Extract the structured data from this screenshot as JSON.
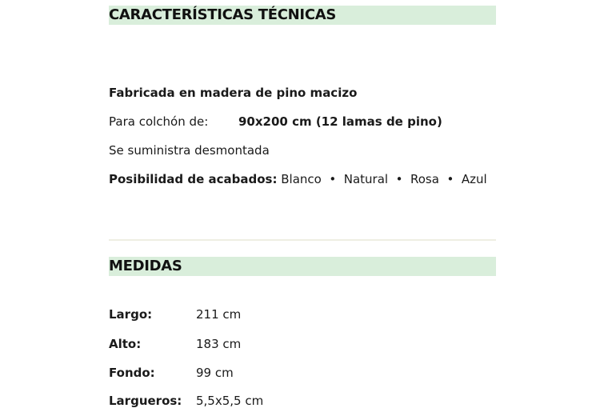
{
  "sections": {
    "tech": {
      "title": "CARACTERÍSTICAS TÉCNICAS",
      "material": "Fabricada en madera de pino macizo",
      "mattress_label": "Para colchón de:",
      "mattress_value": "90x200 cm (12 lamas de pino)",
      "supply": "Se suministra desmontada",
      "finishes_label": "Posibilidad de acabados:",
      "finishes": [
        "Blanco",
        "Natural",
        "Rosa",
        "Azul"
      ]
    },
    "measures": {
      "title": "MEDIDAS",
      "rows": [
        {
          "label": "Largo:",
          "value": "211 cm"
        },
        {
          "label": "Alto:",
          "value": "183 cm"
        },
        {
          "label": "Fondo:",
          "value": "99 cm"
        },
        {
          "label": "Largueros:",
          "value": "5,5x5,5 cm"
        }
      ]
    }
  },
  "colors": {
    "header_bg": "#d9eedb",
    "divider": "#eeeee2"
  }
}
